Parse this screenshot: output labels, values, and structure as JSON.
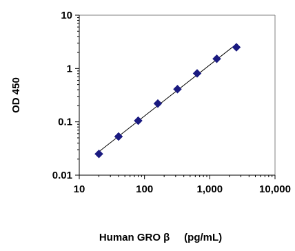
{
  "chart_data": {
    "type": "scatter",
    "title": "",
    "xlabel": "Human GRO β     (pg/mL)",
    "ylabel": "OD 450",
    "x_scale": "log",
    "y_scale": "log",
    "xlim": [
      10,
      10000
    ],
    "ylim": [
      0.01,
      10
    ],
    "x_ticks": [
      10,
      100,
      1000,
      10000
    ],
    "x_tick_labels": [
      "10",
      "100",
      "1,000",
      "10,000"
    ],
    "y_ticks": [
      0.01,
      0.1,
      1,
      10
    ],
    "y_tick_labels": [
      "0.01",
      "0.1",
      "1",
      "10"
    ],
    "grid": false,
    "marker": "diamond",
    "fit_line": true,
    "series": [
      {
        "x": [
          20,
          40,
          80,
          160,
          320,
          640,
          1280,
          2560
        ],
        "y": [
          0.025,
          0.053,
          0.105,
          0.22,
          0.41,
          0.81,
          1.52,
          2.5
        ]
      }
    ],
    "colors": {
      "marker": "#1a1a80",
      "line": "#000000",
      "plot_border": "#808080",
      "axis": "#000000"
    }
  }
}
